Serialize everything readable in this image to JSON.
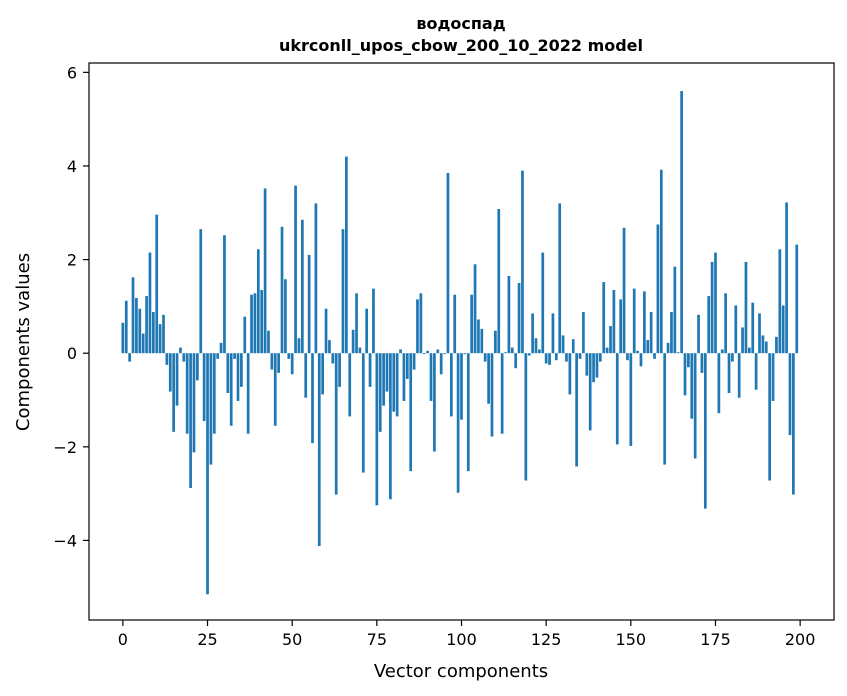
{
  "chart_data": {
    "type": "bar",
    "title": "водоспад",
    "subtitle": "ukrconll_upos_cbow_200_10_2022 model",
    "xlabel": "Vector components",
    "ylabel": "Components values",
    "xlim": [
      -10,
      210
    ],
    "ylim": [
      -5.7,
      6.2
    ],
    "xticks": [
      0,
      25,
      50,
      75,
      100,
      125,
      150,
      175,
      200
    ],
    "yticks": [
      -4,
      -2,
      0,
      2,
      4,
      6
    ],
    "xtick_labels": [
      "0",
      "25",
      "50",
      "75",
      "100",
      "125",
      "150",
      "175",
      "200"
    ],
    "ytick_labels": [
      "−4",
      "−2",
      "0",
      "2",
      "4",
      "6"
    ],
    "bar_color": "#1f77b4",
    "grid": false,
    "values": [
      0.65,
      1.12,
      -0.18,
      1.62,
      1.18,
      0.95,
      0.42,
      1.22,
      2.15,
      0.88,
      2.96,
      0.62,
      0.82,
      -0.25,
      -0.82,
      -1.68,
      -1.12,
      0.12,
      -0.18,
      -1.72,
      -2.88,
      -2.12,
      -0.58,
      2.65,
      -1.45,
      -5.15,
      -2.38,
      -1.72,
      -0.12,
      0.22,
      2.52,
      -0.85,
      -1.55,
      -0.12,
      -1.02,
      -0.72,
      0.78,
      -1.72,
      1.25,
      1.28,
      2.22,
      1.35,
      3.52,
      0.48,
      -0.35,
      -1.55,
      -0.42,
      2.7,
      1.58,
      -0.12,
      -0.45,
      3.58,
      0.32,
      2.85,
      -0.95,
      2.1,
      -1.92,
      3.2,
      -4.12,
      -0.88,
      0.95,
      0.28,
      -0.22,
      -3.02,
      -0.72,
      2.65,
      4.2,
      -1.35,
      0.5,
      1.28,
      0.12,
      -2.55,
      0.95,
      -0.72,
      1.38,
      -3.25,
      -1.68,
      -1.12,
      -0.82,
      -3.12,
      -1.25,
      -1.35,
      0.08,
      -1.02,
      -0.55,
      -2.52,
      -0.35,
      1.15,
      1.28,
      -0.02,
      0.05,
      -1.02,
      -2.1,
      0.08,
      -0.45,
      -0.02,
      3.85,
      -1.35,
      1.25,
      -2.98,
      -1.42,
      -0.02,
      -2.52,
      1.25,
      1.9,
      0.72,
      0.52,
      -0.18,
      -1.08,
      -1.78,
      0.48,
      3.08,
      -1.72,
      0.02,
      1.65,
      0.12,
      -0.32,
      1.5,
      3.9,
      -2.72,
      -0.05,
      0.85,
      0.32,
      0.08,
      2.15,
      -0.22,
      -0.25,
      0.85,
      -0.15,
      3.2,
      0.38,
      -0.18,
      -0.88,
      0.3,
      -2.42,
      -0.12,
      0.88,
      -0.48,
      -1.65,
      -0.62,
      -0.52,
      -0.18,
      1.52,
      0.12,
      0.58,
      1.35,
      -1.95,
      1.15,
      2.68,
      -0.15,
      -1.98,
      1.38,
      0.05,
      -0.28,
      1.32,
      0.28,
      0.88,
      -0.12,
      2.75,
      3.92,
      -2.38,
      0.22,
      0.88,
      1.85,
      0.02,
      5.6,
      -0.9,
      -0.3,
      -1.4,
      -2.25,
      0.82,
      -0.42,
      -3.32,
      1.22,
      1.95,
      2.15,
      -1.28,
      0.08,
      1.28,
      -0.85,
      -0.18,
      1.02,
      -0.95,
      0.55,
      1.95,
      0.12,
      1.08,
      -0.78,
      0.85,
      0.38,
      0.25,
      -2.72,
      -1.02,
      0.35,
      2.22,
      1.02,
      3.22,
      -1.75,
      -3.02,
      2.32
    ]
  }
}
